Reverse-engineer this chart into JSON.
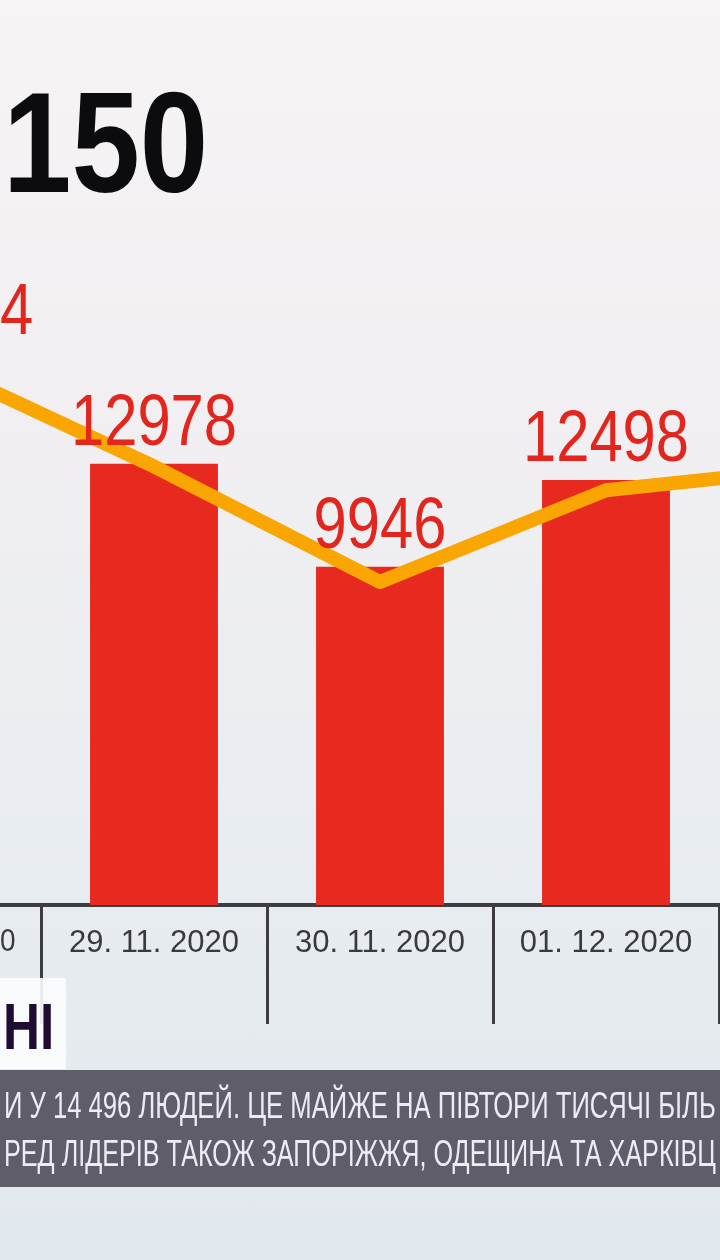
{
  "chart_data": {
    "type": "bar",
    "title": "150",
    "categories": [
      null,
      "29. 11. 2020",
      "30. 11. 2020",
      "01. 12. 2020",
      null
    ],
    "series": [
      {
        "color": "#e8291f",
        "values": [
          null,
          12978,
          9946,
          12498,
          null
        ],
        "value_labels": [
          null,
          "12978",
          "9946",
          "12498",
          null
        ]
      },
      {
        "type": "line",
        "color": "#f9a602",
        "values": [
          16000,
          12900,
          9500,
          12200,
          12900
        ]
      }
    ],
    "tick_labels": "x",
    "marker": "none",
    "annotations": [
      "4",
      "0",
      "НІ",
      "И У 14 496 ЛЮДЕЙ. ЦЕ МАЙЖЕ НА ПІВТОРИ ТИСЯЧІ БІЛЬ",
      "РЕД ЛІДЕРІВ ТАКОЖ ЗАПОРІЖЖЯ, ОДЕЩИНА ТА ХАРКІВЦ"
    ]
  }
}
